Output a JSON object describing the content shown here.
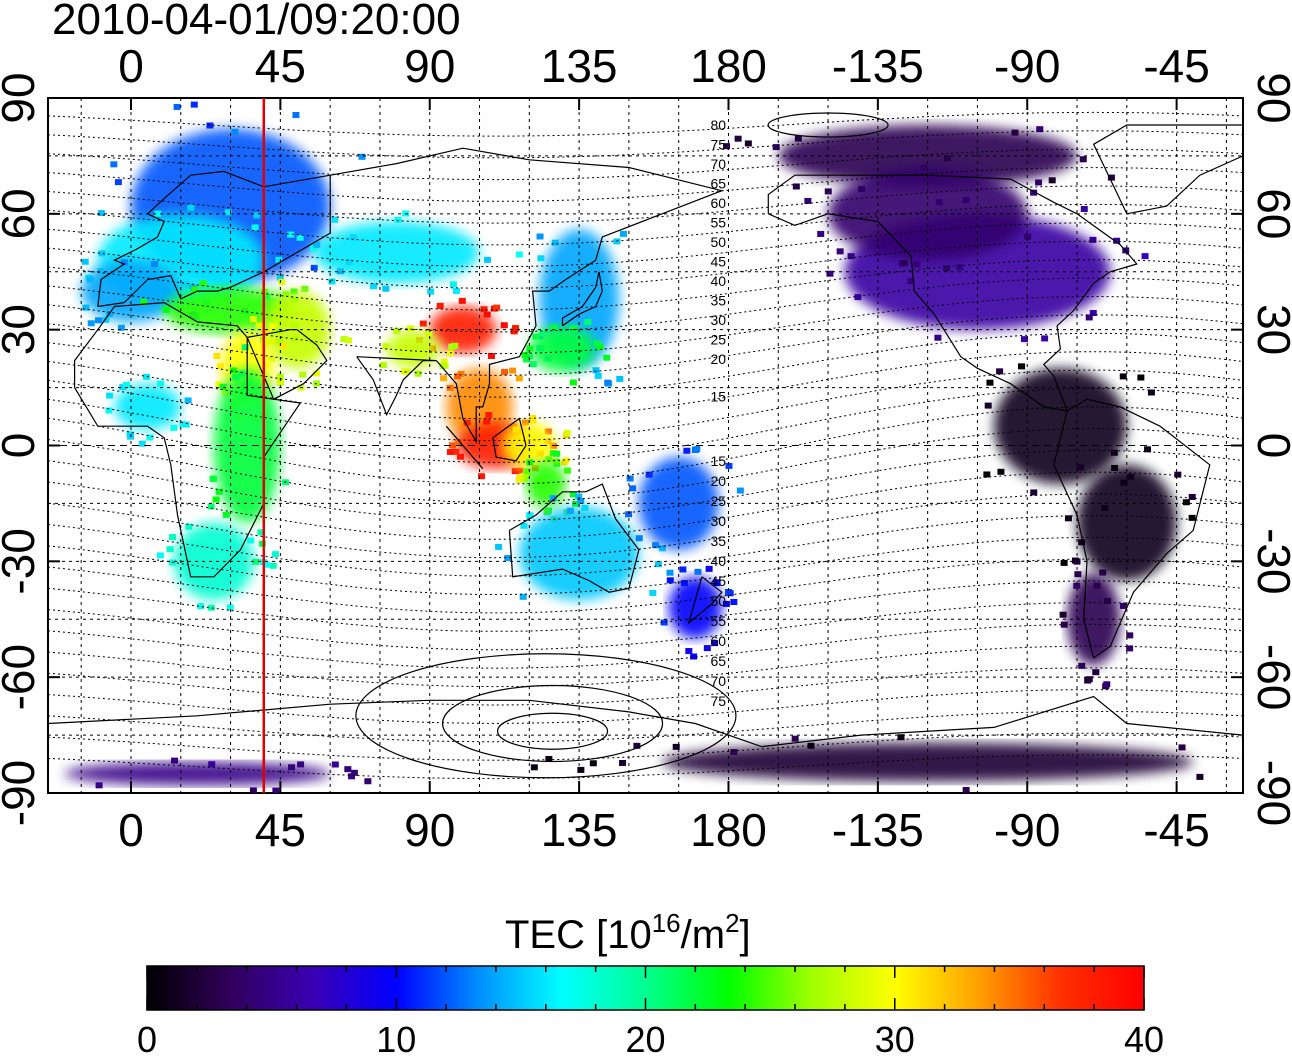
{
  "title": "2010-04-01/09:20:00",
  "colorbar": {
    "label_main": "TEC  [10",
    "label_exp": "16",
    "label_mid": "/m",
    "label_exp2": "2",
    "label_end": "]",
    "ticks": [
      "0",
      "10",
      "20",
      "30",
      "40"
    ],
    "stops": [
      "#000000",
      "#30005a",
      "#3a00b4",
      "#0000ff",
      "#0090ff",
      "#00ffff",
      "#00ff90",
      "#00ff00",
      "#a0ff00",
      "#ffff00",
      "#ffa000",
      "#ff3000",
      "#ff0000"
    ]
  },
  "chart_data": {
    "type": "heatmap",
    "title": "2010-04-01/09:20:00",
    "xlabel": "",
    "ylabel": "",
    "x_top_ticks": [
      "0",
      "45",
      "90",
      "135",
      "180",
      "-135",
      "-90",
      "-45"
    ],
    "x_bottom_ticks": [
      "0",
      "45",
      "90",
      "135",
      "180",
      "-135",
      "-90",
      "-45"
    ],
    "y_left_ticks": [
      "90",
      "60",
      "30",
      "0",
      "-30",
      "-60",
      "-90"
    ],
    "y_right_ticks": [
      "90",
      "60",
      "30",
      "0",
      "-30",
      "-60",
      "-90"
    ],
    "lon_range_east": [
      -25,
      335
    ],
    "lat_range": [
      -90,
      90
    ],
    "grid": true,
    "red_meridian_lon": 40,
    "value_range": [
      0,
      40
    ],
    "contour_labels_north": [
      "80",
      "75",
      "70",
      "65",
      "60",
      "55",
      "50",
      "45",
      "40",
      "35",
      "30",
      "25",
      "20",
      "15"
    ],
    "contour_labels_south": [
      "15",
      "20",
      "25",
      "30",
      "35",
      "40",
      "45",
      "50",
      "55",
      "60",
      "65",
      "70",
      "75"
    ],
    "tec_blobs": [
      {
        "lon": 30,
        "lat": 62,
        "rx": 30,
        "ry": 20,
        "tec": 12
      },
      {
        "lon": 15,
        "lat": 48,
        "rx": 25,
        "ry": 12,
        "tec": 16
      },
      {
        "lon": 0,
        "lat": 40,
        "rx": 15,
        "ry": 8,
        "tec": 14
      },
      {
        "lon": 30,
        "lat": 35,
        "rx": 20,
        "ry": 6,
        "tec": 24
      },
      {
        "lon": 50,
        "lat": 30,
        "rx": 10,
        "ry": 10,
        "tec": 28
      },
      {
        "lon": 35,
        "lat": 20,
        "rx": 8,
        "ry": 10,
        "tec": 30
      },
      {
        "lon": 35,
        "lat": 0,
        "rx": 10,
        "ry": 20,
        "tec": 22
      },
      {
        "lon": 25,
        "lat": -30,
        "rx": 12,
        "ry": 10,
        "tec": 18
      },
      {
        "lon": 5,
        "lat": 10,
        "rx": 10,
        "ry": 6,
        "tec": 16
      },
      {
        "lon": 80,
        "lat": 50,
        "rx": 25,
        "ry": 8,
        "tec": 16
      },
      {
        "lon": 100,
        "lat": 30,
        "rx": 10,
        "ry": 6,
        "tec": 38
      },
      {
        "lon": 85,
        "lat": 25,
        "rx": 8,
        "ry": 5,
        "tec": 28
      },
      {
        "lon": 105,
        "lat": 10,
        "rx": 10,
        "ry": 10,
        "tec": 34
      },
      {
        "lon": 110,
        "lat": 0,
        "rx": 12,
        "ry": 6,
        "tec": 38
      },
      {
        "lon": 120,
        "lat": 0,
        "rx": 8,
        "ry": 6,
        "tec": 30
      },
      {
        "lon": 135,
        "lat": 38,
        "rx": 12,
        "ry": 18,
        "tec": 14
      },
      {
        "lon": 130,
        "lat": 25,
        "rx": 10,
        "ry": 6,
        "tec": 22
      },
      {
        "lon": 125,
        "lat": -10,
        "rx": 6,
        "ry": 6,
        "tec": 24
      },
      {
        "lon": 135,
        "lat": -28,
        "rx": 18,
        "ry": 12,
        "tec": 15
      },
      {
        "lon": 170,
        "lat": -42,
        "rx": 8,
        "ry": 8,
        "tec": 10
      },
      {
        "lon": 165,
        "lat": -15,
        "rx": 12,
        "ry": 12,
        "tec": 12
      },
      {
        "lon": 240,
        "lat": 75,
        "rx": 45,
        "ry": 8,
        "tec": 3
      },
      {
        "lon": 255,
        "lat": 45,
        "rx": 40,
        "ry": 15,
        "tec": 6
      },
      {
        "lon": 240,
        "lat": 60,
        "rx": 30,
        "ry": 12,
        "tec": 4
      },
      {
        "lon": 280,
        "lat": 5,
        "rx": 20,
        "ry": 15,
        "tec": 1
      },
      {
        "lon": 300,
        "lat": -20,
        "rx": 15,
        "ry": 15,
        "tec": 1
      },
      {
        "lon": 290,
        "lat": -45,
        "rx": 8,
        "ry": 12,
        "tec": 3
      },
      {
        "lon": 240,
        "lat": -82,
        "rx": 80,
        "ry": 5,
        "tec": 2
      },
      {
        "lon": 20,
        "lat": -85,
        "rx": 40,
        "ry": 3,
        "tec": 5
      }
    ]
  }
}
